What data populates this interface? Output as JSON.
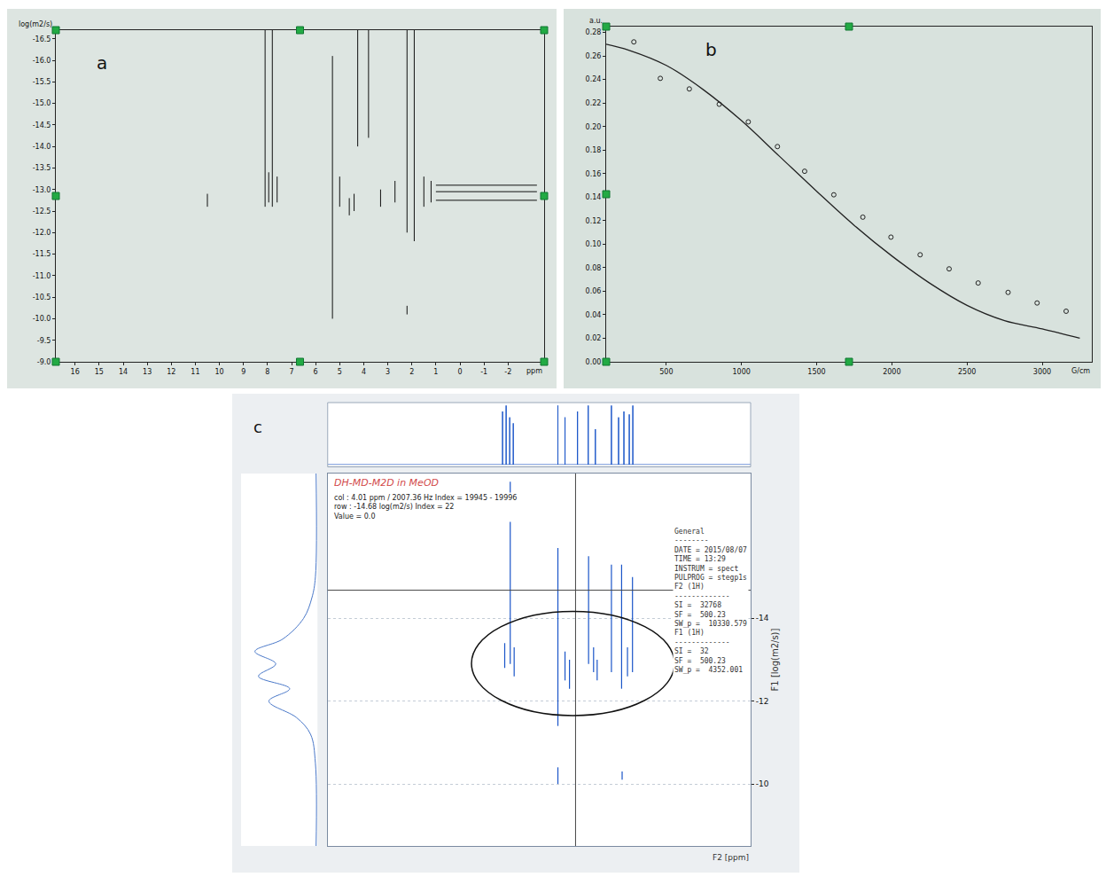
{
  "chart_data": [
    {
      "panel": "a",
      "type": "contour",
      "y_label": "log(m2/s)",
      "x_label": "ppm",
      "grid": false,
      "xlim": [
        16.8,
        -3.5
      ],
      "xticks": [
        16,
        15,
        14,
        13,
        12,
        11,
        10,
        9,
        8,
        7,
        6,
        5,
        4,
        3,
        2,
        1,
        0,
        -1,
        -2
      ],
      "ylim": [
        -9.0,
        -16.7
      ],
      "yticks": [
        -16.5,
        {
          "value": -16.0,
          "label": "-16.0"
        },
        -15.5,
        {
          "value": -15.0,
          "label": "-15.0"
        },
        -14.5,
        {
          "value": -14.0,
          "label": "-14.0"
        },
        -13.5,
        {
          "value": -13.0,
          "label": "-13.0"
        },
        -12.5,
        {
          "value": -12.0,
          "label": "-12.0"
        },
        -11.5,
        {
          "value": -11.0,
          "label": "-11.0"
        },
        -10.5,
        {
          "value": -10.0,
          "label": "-10.0"
        },
        -9.5,
        {
          "value": -9.0,
          "label": "-9.0"
        }
      ],
      "series": [
        {
          "color": "#111111",
          "x": [
            10.5,
            10.5,
            null,
            8.1,
            8.1,
            null,
            7.8,
            7.8,
            null,
            7.95,
            7.95,
            null,
            7.6,
            7.6,
            null,
            5.3,
            5.3,
            null,
            5.0,
            5.0,
            null,
            4.6,
            4.6,
            null,
            4.4,
            4.4,
            null,
            4.25,
            4.25,
            null,
            3.8,
            3.8,
            null,
            3.3,
            3.3,
            null,
            2.7,
            2.7,
            null,
            2.2,
            2.2,
            null,
            2.2,
            2.2,
            null,
            1.9,
            1.9,
            null,
            1.5,
            1.5,
            null,
            1.2,
            1.2,
            null,
            1.0,
            -3.2,
            null,
            1.0,
            -3.2,
            null,
            1.0,
            -3.2
          ],
          "values": [
            -12.9,
            -12.6,
            null,
            -16.7,
            -12.6,
            null,
            -16.7,
            -12.6,
            null,
            -13.4,
            -12.7,
            null,
            -13.3,
            -12.7,
            null,
            -16.1,
            -10.0,
            null,
            -13.3,
            -12.6,
            null,
            -12.8,
            -12.4,
            null,
            -12.9,
            -12.5,
            null,
            -16.7,
            -14.0,
            null,
            -16.7,
            -14.2,
            null,
            -13.0,
            -12.6,
            null,
            -13.2,
            -12.7,
            null,
            -16.7,
            -12.0,
            null,
            -10.3,
            -10.1,
            null,
            -16.7,
            -11.8,
            null,
            -13.3,
            -12.6,
            null,
            -13.2,
            -12.7,
            null,
            -12.75,
            -12.75,
            null,
            -12.95,
            -12.95,
            null,
            -13.1,
            -13.1
          ]
        }
      ]
    },
    {
      "panel": "b",
      "type": "scatter",
      "y_label": "a.u.",
      "x_label": "G/cm",
      "grid": false,
      "xlim": [
        100,
        3330
      ],
      "xticks": [
        500,
        1000,
        1500,
        2000,
        2500,
        3000
      ],
      "ylim": [
        0,
        0.285
      ],
      "yticks": [
        {
          "value": 0,
          "label": "0.00"
        },
        0.02,
        0.04,
        0.06,
        0.08,
        {
          "value": 0.1,
          "label": "0.10"
        },
        0.12,
        0.14,
        0.16,
        0.18,
        {
          "value": 0.2,
          "label": "0.20"
        },
        0.22,
        0.24,
        0.26,
        0.28
      ],
      "series": [
        {
          "type": "scatter",
          "marker": "circle-open",
          "color": "#222222",
          "x": [
            284,
            460,
            653,
            852,
            1045,
            1239,
            1420,
            1614,
            1807,
            1994,
            2188,
            2381,
            2574,
            2773,
            2966,
            3159
          ],
          "values": [
            0.272,
            0.241,
            0.232,
            0.219,
            0.204,
            0.183,
            0.162,
            0.142,
            0.123,
            0.106,
            0.091,
            0.079,
            0.067,
            0.059,
            0.05,
            0.043
          ]
        },
        {
          "type": "line",
          "line_style": "solid",
          "color": "#222222",
          "x": [
            100,
            250,
            500,
            750,
            1000,
            1250,
            1500,
            1750,
            2000,
            2250,
            2500,
            2750,
            3000,
            3250
          ],
          "values": [
            0.27,
            0.265,
            0.252,
            0.231,
            0.205,
            0.175,
            0.145,
            0.116,
            0.09,
            0.067,
            0.048,
            0.035,
            0.028,
            0.02
          ]
        }
      ]
    },
    {
      "panel": "c",
      "type": "contour",
      "title": "DH-MD-M2D in MeOD",
      "cursor_text": [
        "col : 4.01 ppm / 2007.36 Hz Index = 19945 - 19996",
        "row : -14.68 log(m2/s) Index = 22",
        "Value = 0.0"
      ],
      "cursor": {
        "x": 4.01,
        "y": -14.68
      },
      "info": [
        "General",
        "--------",
        "DATE = 2015/08/07",
        "TIME = 13:29",
        "INSTRUM = spect",
        "PULPROG = stegp1s",
        "F2 (1H)",
        "-------------",
        "SI =  32768",
        "SF =  500.23",
        "SW_p =  10330.579",
        "F1 (1H)",
        "-------------",
        "SI =  32",
        "SF =  500.23",
        "SW_p =  4352.001"
      ],
      "x_label": "F2 [ppm]",
      "y_label": "F1 [log(m2/s)]",
      "grid": true,
      "tick_labels": "y",
      "xlim": [
        17.9,
        -5.8
      ],
      "ylim": [
        -8.5,
        -17.5
      ],
      "yticks": [
        -14,
        -12,
        -10
      ],
      "series": [
        {
          "color": "#1a55c8",
          "x": [
            7.98,
            7.98,
            null,
            7.67,
            7.67,
            null,
            7.45,
            7.45,
            null,
            5.0,
            5.0,
            null,
            5.0,
            5.0,
            null,
            4.6,
            4.6,
            null,
            4.35,
            4.35,
            null,
            3.28,
            3.28,
            null,
            3.0,
            3.0,
            null,
            2.8,
            2.8,
            null,
            2.0,
            2.0,
            null,
            1.43,
            1.43,
            null,
            1.1,
            1.1,
            null,
            0.82,
            0.82,
            null,
            1.4,
            1.4
          ],
          "values": [
            -13.4,
            -12.8,
            null,
            -17.3,
            -12.9,
            null,
            -13.3,
            -12.6,
            null,
            -15.7,
            -11.4,
            null,
            -10.4,
            -10.0,
            null,
            -13.2,
            -12.5,
            null,
            -13.0,
            -12.3,
            null,
            -15.5,
            -12.9,
            null,
            -13.3,
            -12.7,
            null,
            -13.0,
            -12.5,
            null,
            -15.3,
            -12.7,
            null,
            -15.3,
            -12.3,
            null,
            -13.3,
            -12.6,
            null,
            -15.0,
            -12.7,
            null,
            -10.3,
            -10.1
          ]
        }
      ],
      "projection_top": {
        "color": "#1a55c8",
        "x": [
          17.9,
          8.1,
          8.1,
          8.1,
          7.9,
          7.9,
          7.9,
          7.7,
          7.7,
          7.7,
          7.5,
          7.5,
          7.5,
          5.0,
          5.0,
          5.0,
          4.6,
          4.6,
          4.6,
          3.9,
          3.9,
          3.9,
          3.3,
          3.3,
          3.3,
          2.9,
          2.9,
          2.9,
          2.0,
          2.0,
          2.0,
          1.6,
          1.6,
          1.6,
          1.3,
          1.3,
          1.3,
          1.0,
          1.0,
          1.0,
          0.8,
          0.8,
          0.8,
          -5.8
        ],
        "values": [
          0,
          0,
          0.9,
          0,
          0,
          1,
          0,
          0,
          0.8,
          0,
          0,
          0.7,
          0,
          0,
          1,
          0,
          0,
          0.8,
          0,
          0,
          0.9,
          0,
          0,
          1,
          0,
          0,
          0.6,
          0,
          0,
          1,
          0,
          0,
          0.8,
          0,
          0,
          0.9,
          0,
          0,
          0.85,
          0,
          0,
          1,
          0,
          0
        ]
      },
      "projection_left": {
        "color": "#4a78c8",
        "y": [
          -17.5,
          -15,
          -14.5,
          -14,
          -13.5,
          -13.2,
          -12.9,
          -12.6,
          -12.3,
          -12.0,
          -11.6,
          -11.2,
          -10.5,
          -8.5
        ],
        "values": [
          0.02,
          0.03,
          0.08,
          0.2,
          0.5,
          0.9,
          0.6,
          0.85,
          0.4,
          0.7,
          0.3,
          0.1,
          0.03,
          0.02
        ]
      }
    }
  ]
}
